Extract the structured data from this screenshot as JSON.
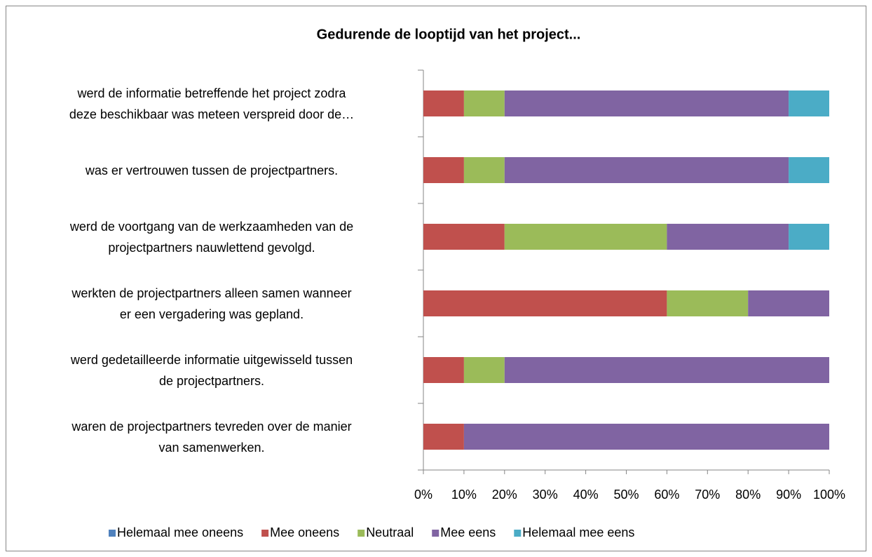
{
  "chart_data": {
    "type": "stacked-barh",
    "title": "Gedurende de looptijd van het project...",
    "categories": [
      "werd de informatie betreffende het project zodra\ndeze beschikbaar was meteen verspreid door de…",
      "was er vertrouwen tussen de projectpartners.",
      "werd de voortgang van de werkzaamheden van de\nprojectpartners nauwlettend gevolgd.",
      "werkten de projectpartners alleen samen wanneer\ner een vergadering was gepland.",
      "werd gedetailleerde informatie uitgewisseld tussen\nde projectpartners.",
      "waren de projectpartners tevreden over de manier\nvan samenwerken."
    ],
    "series": [
      {
        "name": "Helemaal mee oneens",
        "color": "#4f81bd",
        "values": [
          0,
          0,
          0,
          0,
          0,
          0
        ]
      },
      {
        "name": "Mee oneens",
        "color": "#c0504d",
        "values": [
          10,
          10,
          20,
          60,
          10,
          10
        ]
      },
      {
        "name": "Neutraal",
        "color": "#9bbb59",
        "values": [
          10,
          10,
          40,
          20,
          10,
          0
        ]
      },
      {
        "name": "Mee eens",
        "color": "#8064a2",
        "values": [
          70,
          70,
          30,
          20,
          80,
          90
        ]
      },
      {
        "name": "Helemaal mee eens",
        "color": "#4bacc6",
        "values": [
          10,
          10,
          10,
          0,
          0,
          0
        ]
      }
    ],
    "xlim": [
      0,
      100
    ],
    "xticks": [
      {
        "value": 0,
        "label": "0%"
      },
      {
        "value": 10,
        "label": "10%"
      },
      {
        "value": 20,
        "label": "20%"
      },
      {
        "value": 30,
        "label": "30%"
      },
      {
        "value": 40,
        "label": "40%"
      },
      {
        "value": 50,
        "label": "50%"
      },
      {
        "value": 60,
        "label": "60%"
      },
      {
        "value": 70,
        "label": "70%"
      },
      {
        "value": 80,
        "label": "80%"
      },
      {
        "value": 90,
        "label": "90%"
      },
      {
        "value": 100,
        "label": "100%"
      }
    ],
    "legend": "bottom"
  }
}
